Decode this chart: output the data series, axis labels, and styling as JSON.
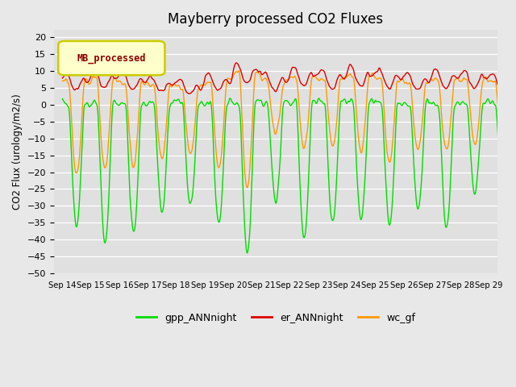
{
  "title": "Mayberry processed CO2 Fluxes",
  "ylabel": "CO2 Flux (urology/m2/s)",
  "ylim": [
    -50,
    22
  ],
  "yticks": [
    -50,
    -45,
    -40,
    -35,
    -30,
    -25,
    -20,
    -15,
    -10,
    -5,
    0,
    5,
    10,
    15,
    20
  ],
  "xtick_labels": [
    "Sep 14",
    "Sep 15",
    "Sep 16",
    "Sep 17",
    "Sep 18",
    "Sep 19",
    "Sep 20",
    "Sep 21",
    "Sep 22",
    "Sep 23",
    "Sep 24",
    "Sep 25",
    "Sep 26",
    "Sep 27",
    "Sep 28",
    "Sep 29"
  ],
  "n_days": 16,
  "points_per_day": 48,
  "bg_color": "#e0e0e0",
  "fig_bg_color": "#e8e8e8",
  "line_colors": {
    "gpp": "#00dd00",
    "er": "#dd0000",
    "wc": "#ff9900"
  },
  "legend_label": "MB_processed",
  "legend_text_color": "#8b0000",
  "legend_bg_color": "#ffffcc",
  "legend_border_color": "#cccc00",
  "line_width": 1.0,
  "title_fontsize": 12,
  "legend_bottom_labels": [
    "gpp_ANNnight",
    "er_ANNnight",
    "wc_gf"
  ]
}
